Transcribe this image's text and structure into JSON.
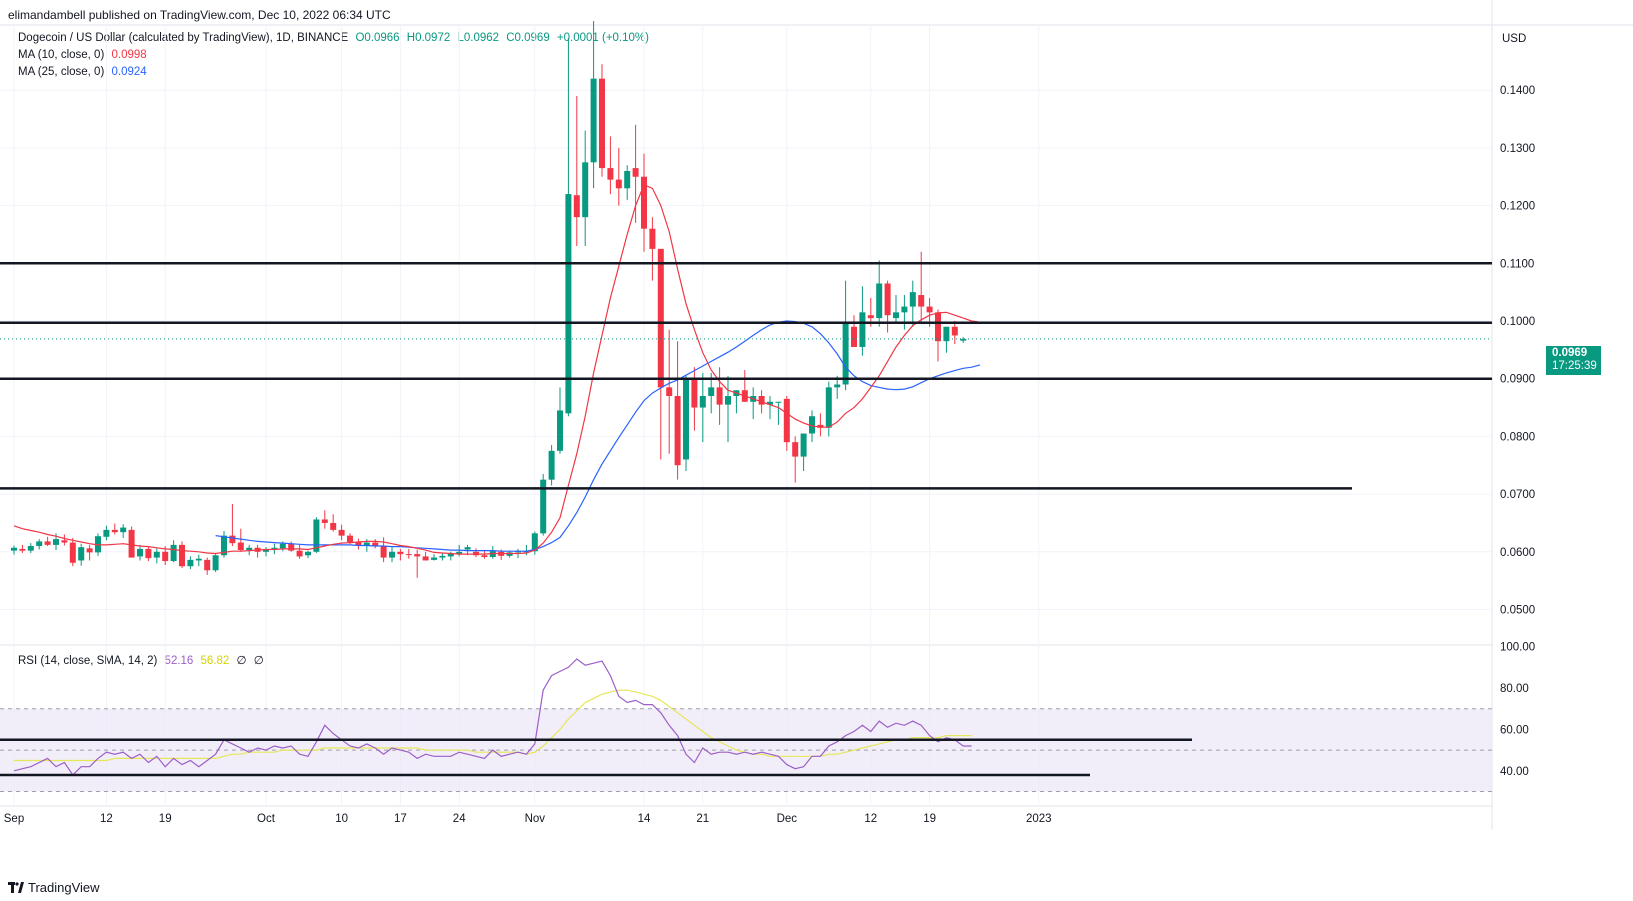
{
  "header": {
    "published": "elimandambell published on TradingView.com, Dec 10, 2022 06:34 UTC"
  },
  "legend": {
    "symbol": "Dogecoin / US Dollar (calculated by TradingView), 1D, BINANCE",
    "o": "O0.0966",
    "h": "H0.0972",
    "l": "L0.0962",
    "c": "C0.0969",
    "change": "+0.0001 (+0.10%)",
    "ma10_label": "MA (10, close, 0)",
    "ma10_value": "0.0998",
    "ma25_label": "MA (25, close, 0)",
    "ma25_value": "0.0924",
    "rsi_label": "RSI (14, close, SMA, 14, 2)",
    "rsi_value": "52.16",
    "rsi_sma_value": "56.82",
    "rsi_extra1": "∅",
    "rsi_extra2": "∅"
  },
  "price_badge": {
    "value": "0.0969",
    "countdown": "17:25:39"
  },
  "currency": "USD",
  "footer": {
    "brand": "TradingView"
  },
  "colors": {
    "up": "#089981",
    "down": "#f23645",
    "ma10": "#f23645",
    "ma25": "#2962ff",
    "rsi": "#9c5fc7",
    "rsi_sma": "#e6e65a",
    "band": "#ede7f6"
  },
  "chart_data": {
    "type": "candlestick",
    "price_ticks": [
      "0.1400",
      "0.1300",
      "0.1200",
      "0.1100",
      "0.1000",
      "0.0900",
      "0.0800",
      "0.0700",
      "0.0600",
      "0.0500"
    ],
    "rsi_ticks": [
      "100.00",
      "80.00",
      "60.00",
      "40.00"
    ],
    "x_ticks": [
      "Sep",
      "12",
      "19",
      "Oct",
      "10",
      "17",
      "24",
      "Nov",
      "14",
      "21",
      "Dec",
      "12",
      "19",
      "2023"
    ],
    "x_tick_day_index": [
      0,
      11,
      18,
      30,
      39,
      46,
      53,
      62,
      75,
      82,
      92,
      102,
      109,
      122
    ],
    "ohlc": [
      [
        0.0602,
        0.0611,
        0.0595,
        0.0607
      ],
      [
        0.0605,
        0.0612,
        0.0598,
        0.0602
      ],
      [
        0.0602,
        0.0615,
        0.0598,
        0.061
      ],
      [
        0.061,
        0.0622,
        0.0604,
        0.0618
      ],
      [
        0.0618,
        0.0626,
        0.061,
        0.0612
      ],
      [
        0.0612,
        0.0632,
        0.0603,
        0.0622
      ],
      [
        0.062,
        0.063,
        0.0611,
        0.0616
      ],
      [
        0.0616,
        0.0624,
        0.0575,
        0.0581
      ],
      [
        0.0585,
        0.0614,
        0.0576,
        0.0608
      ],
      [
        0.0606,
        0.0612,
        0.0585,
        0.0599
      ],
      [
        0.0599,
        0.0632,
        0.0593,
        0.0627
      ],
      [
        0.0626,
        0.0645,
        0.062,
        0.0638
      ],
      [
        0.0638,
        0.0649,
        0.063,
        0.0634
      ],
      [
        0.0634,
        0.0648,
        0.0624,
        0.0642
      ],
      [
        0.0638,
        0.0644,
        0.059,
        0.059
      ],
      [
        0.0592,
        0.0612,
        0.0585,
        0.0605
      ],
      [
        0.0605,
        0.061,
        0.0584,
        0.0589
      ],
      [
        0.059,
        0.0606,
        0.058,
        0.06
      ],
      [
        0.06,
        0.061,
        0.0577,
        0.0584
      ],
      [
        0.0584,
        0.062,
        0.0582,
        0.0612
      ],
      [
        0.0612,
        0.0618,
        0.0572,
        0.0575
      ],
      [
        0.0575,
        0.0592,
        0.057,
        0.0586
      ],
      [
        0.0585,
        0.0595,
        0.0575,
        0.0588
      ],
      [
        0.0586,
        0.059,
        0.056,
        0.0568
      ],
      [
        0.0568,
        0.0596,
        0.0565,
        0.0594
      ],
      [
        0.0594,
        0.0636,
        0.059,
        0.0628
      ],
      [
        0.0628,
        0.0683,
        0.061,
        0.0615
      ],
      [
        0.0616,
        0.064,
        0.06,
        0.0603
      ],
      [
        0.0603,
        0.0612,
        0.0594,
        0.0607
      ],
      [
        0.0607,
        0.0612,
        0.059,
        0.06
      ],
      [
        0.06,
        0.0608,
        0.0592,
        0.0605
      ],
      [
        0.0605,
        0.0614,
        0.0596,
        0.0607
      ],
      [
        0.0606,
        0.0618,
        0.0601,
        0.0614
      ],
      [
        0.0614,
        0.0618,
        0.06,
        0.0602
      ],
      [
        0.0602,
        0.0612,
        0.0588,
        0.0592
      ],
      [
        0.0594,
        0.0602,
        0.0589,
        0.06
      ],
      [
        0.06,
        0.066,
        0.0598,
        0.0656
      ],
      [
        0.0656,
        0.0672,
        0.064,
        0.065
      ],
      [
        0.065,
        0.0665,
        0.0635,
        0.0638
      ],
      [
        0.0638,
        0.0647,
        0.062,
        0.0628
      ],
      [
        0.0628,
        0.0632,
        0.0613,
        0.0617
      ],
      [
        0.0617,
        0.0623,
        0.0604,
        0.0611
      ],
      [
        0.0611,
        0.0622,
        0.06,
        0.0616
      ],
      [
        0.0616,
        0.0622,
        0.0606,
        0.061
      ],
      [
        0.061,
        0.0625,
        0.0582,
        0.059
      ],
      [
        0.059,
        0.061,
        0.0582,
        0.06
      ],
      [
        0.06,
        0.0605,
        0.0585,
        0.0596
      ],
      [
        0.0596,
        0.0605,
        0.0588,
        0.0595
      ],
      [
        0.0596,
        0.0604,
        0.0555,
        0.0592
      ],
      [
        0.0592,
        0.06,
        0.0585,
        0.0585
      ],
      [
        0.0586,
        0.0596,
        0.0585,
        0.059
      ],
      [
        0.059,
        0.0598,
        0.0585,
        0.0593
      ],
      [
        0.0592,
        0.06,
        0.0585,
        0.0597
      ],
      [
        0.0597,
        0.0612,
        0.0592,
        0.06
      ],
      [
        0.0604,
        0.0612,
        0.0594,
        0.0608
      ],
      [
        0.06,
        0.0606,
        0.0591,
        0.0594
      ],
      [
        0.0594,
        0.0602,
        0.0588,
        0.0591
      ],
      [
        0.0591,
        0.061,
        0.0588,
        0.0601
      ],
      [
        0.06,
        0.0604,
        0.0586,
        0.0593
      ],
      [
        0.0593,
        0.0602,
        0.059,
        0.0599
      ],
      [
        0.0599,
        0.0605,
        0.0589,
        0.0601
      ],
      [
        0.06,
        0.0612,
        0.0594,
        0.0601
      ],
      [
        0.0601,
        0.0635,
        0.0595,
        0.0632
      ],
      [
        0.0632,
        0.0735,
        0.0628,
        0.0725
      ],
      [
        0.0725,
        0.0785,
        0.0715,
        0.0775
      ],
      [
        0.0775,
        0.0885,
        0.077,
        0.0845
      ],
      [
        0.084,
        0.149,
        0.0835,
        0.122
      ],
      [
        0.1218,
        0.139,
        0.113,
        0.118
      ],
      [
        0.118,
        0.133,
        0.113,
        0.1275
      ],
      [
        0.1275,
        0.152,
        0.123,
        0.142
      ],
      [
        0.142,
        0.1445,
        0.125,
        0.1265
      ],
      [
        0.1265,
        0.132,
        0.122,
        0.1245
      ],
      [
        0.1245,
        0.13,
        0.12,
        0.123
      ],
      [
        0.123,
        0.127,
        0.121,
        0.126
      ],
      [
        0.1265,
        0.134,
        0.117,
        0.125
      ],
      [
        0.125,
        0.129,
        0.112,
        0.116
      ],
      [
        0.116,
        0.118,
        0.107,
        0.1125
      ],
      [
        0.1125,
        0.1125,
        0.076,
        0.0885
      ],
      [
        0.0885,
        0.0985,
        0.077,
        0.087
      ],
      [
        0.087,
        0.0965,
        0.0725,
        0.075
      ],
      [
        0.076,
        0.0905,
        0.074,
        0.09
      ],
      [
        0.09,
        0.092,
        0.081,
        0.085
      ],
      [
        0.085,
        0.091,
        0.079,
        0.087
      ],
      [
        0.087,
        0.091,
        0.084,
        0.0885
      ],
      [
        0.0885,
        0.092,
        0.082,
        0.0855
      ],
      [
        0.0855,
        0.0905,
        0.079,
        0.087
      ],
      [
        0.087,
        0.088,
        0.084,
        0.088
      ],
      [
        0.088,
        0.0915,
        0.086,
        0.086
      ],
      [
        0.086,
        0.0885,
        0.083,
        0.087
      ],
      [
        0.087,
        0.088,
        0.084,
        0.0855
      ],
      [
        0.0855,
        0.087,
        0.083,
        0.086
      ],
      [
        0.086,
        0.086,
        0.082,
        0.086
      ],
      [
        0.0865,
        0.087,
        0.0775,
        0.079
      ],
      [
        0.079,
        0.08,
        0.072,
        0.0765
      ],
      [
        0.0765,
        0.08,
        0.074,
        0.0805
      ],
      [
        0.0805,
        0.0845,
        0.079,
        0.0835
      ],
      [
        0.082,
        0.084,
        0.08,
        0.0815
      ],
      [
        0.0815,
        0.0895,
        0.08,
        0.0885
      ],
      [
        0.0885,
        0.0905,
        0.0865,
        0.089
      ],
      [
        0.089,
        0.107,
        0.088,
        0.0995
      ],
      [
        0.099,
        0.101,
        0.096,
        0.0955
      ],
      [
        0.0955,
        0.106,
        0.094,
        0.1015
      ],
      [
        0.101,
        0.104,
        0.099,
        0.1005
      ],
      [
        0.1005,
        0.1105,
        0.099,
        0.1065
      ],
      [
        0.1065,
        0.107,
        0.098,
        0.101
      ],
      [
        0.1005,
        0.1045,
        0.0995,
        0.1015
      ],
      [
        0.1015,
        0.1045,
        0.0985,
        0.1025
      ],
      [
        0.1025,
        0.107,
        0.099,
        0.105
      ],
      [
        0.1045,
        0.112,
        0.0995,
        0.1025
      ],
      [
        0.1025,
        0.104,
        0.099,
        0.1015
      ],
      [
        0.1015,
        0.102,
        0.093,
        0.0965
      ],
      [
        0.0965,
        0.099,
        0.0945,
        0.099
      ],
      [
        0.099,
        0.1,
        0.096,
        0.0975
      ],
      [
        0.0966,
        0.0972,
        0.0962,
        0.0969
      ]
    ],
    "ma10": [
      0.0645,
      0.064,
      0.0637,
      0.0634,
      0.063,
      0.0627,
      0.0623,
      0.062,
      0.0617,
      0.0614,
      0.0612,
      0.0612,
      0.0613,
      0.0614,
      0.0612,
      0.061,
      0.0609,
      0.0607,
      0.0605,
      0.0604,
      0.0602,
      0.0601,
      0.06,
      0.0598,
      0.0597,
      0.0599,
      0.0601,
      0.0601,
      0.0602,
      0.0603,
      0.0604,
      0.0604,
      0.0605,
      0.0605,
      0.0605,
      0.0604,
      0.0607,
      0.061,
      0.0613,
      0.0615,
      0.0616,
      0.0617,
      0.0618,
      0.0618,
      0.0617,
      0.0614,
      0.0611,
      0.0609,
      0.0606,
      0.0603,
      0.0599,
      0.0598,
      0.0597,
      0.0596,
      0.0596,
      0.0596,
      0.0596,
      0.0597,
      0.0597,
      0.0597,
      0.0597,
      0.0598,
      0.0603,
      0.0615,
      0.0634,
      0.0659,
      0.0715,
      0.077,
      0.0835,
      0.091,
      0.0975,
      0.104,
      0.1095,
      0.115,
      0.12,
      0.1236,
      0.123,
      0.12,
      0.1155,
      0.109,
      0.103,
      0.0985,
      0.0945,
      0.0915,
      0.0895,
      0.088,
      0.0875,
      0.087,
      0.0865,
      0.086,
      0.0855,
      0.085,
      0.084,
      0.083,
      0.0823,
      0.0818,
      0.0816,
      0.0816,
      0.0825,
      0.084,
      0.085,
      0.0865,
      0.0885,
      0.0905,
      0.093,
      0.0955,
      0.0975,
      0.0992,
      0.1002,
      0.101,
      0.1014,
      0.1015,
      0.101,
      0.1005,
      0.1,
      0.0998
    ],
    "ma25": [
      null,
      null,
      null,
      null,
      null,
      null,
      null,
      null,
      null,
      null,
      null,
      null,
      null,
      null,
      null,
      null,
      null,
      null,
      null,
      null,
      null,
      null,
      null,
      null,
      0.0628,
      0.0626,
      0.0624,
      0.0622,
      0.062,
      0.0618,
      0.0617,
      0.0616,
      0.0615,
      0.0614,
      0.0613,
      0.0612,
      0.0612,
      0.0612,
      0.0612,
      0.0612,
      0.0612,
      0.0611,
      0.0611,
      0.061,
      0.061,
      0.0609,
      0.0609,
      0.0608,
      0.0607,
      0.0606,
      0.0605,
      0.0604,
      0.0603,
      0.0603,
      0.0602,
      0.0602,
      0.0602,
      0.0602,
      0.0601,
      0.0601,
      0.0601,
      0.0601,
      0.0604,
      0.0609,
      0.0616,
      0.0625,
      0.0645,
      0.0668,
      0.0695,
      0.0725,
      0.0752,
      0.0775,
      0.0798,
      0.082,
      0.0842,
      0.0862,
      0.0875,
      0.0884,
      0.0892,
      0.0898,
      0.0906,
      0.0914,
      0.0922,
      0.093,
      0.0938,
      0.0946,
      0.0955,
      0.0965,
      0.0975,
      0.0985,
      0.0993,
      0.0998,
      0.1,
      0.0999,
      0.0996,
      0.099,
      0.0978,
      0.0962,
      0.0943,
      0.092,
      0.0905,
      0.0895,
      0.0888,
      0.0885,
      0.0882,
      0.0881,
      0.0882,
      0.0886,
      0.0893,
      0.09,
      0.0905,
      0.091,
      0.0914,
      0.0918,
      0.092,
      0.0924
    ],
    "rsi": [
      40,
      41,
      42,
      44,
      46,
      42,
      44,
      38,
      42,
      42,
      46,
      49,
      48,
      49,
      46,
      48,
      44,
      47,
      42,
      46,
      43,
      45,
      42,
      45,
      48,
      55,
      53,
      51,
      49,
      51,
      50,
      52,
      51,
      52,
      48,
      47,
      54,
      62,
      58,
      55,
      52,
      51,
      53,
      51,
      48,
      51,
      50,
      49,
      46,
      48,
      47,
      47,
      47,
      49,
      48,
      47,
      46,
      50,
      47,
      48,
      49,
      48,
      53,
      79,
      86,
      88,
      90,
      94,
      91,
      92,
      93,
      86,
      76,
      73,
      74,
      72,
      72,
      68,
      62,
      57,
      48,
      44,
      51,
      48,
      49,
      49,
      48,
      49,
      48,
      49,
      48,
      47,
      43,
      41,
      42,
      47,
      47,
      52,
      54,
      57,
      59,
      62,
      59,
      64,
      61,
      63,
      62,
      64,
      62,
      57,
      54,
      56,
      55,
      52,
      52
    ],
    "rsi_sma": [
      45,
      45,
      45,
      45,
      45,
      45,
      45,
      45,
      45,
      45,
      45,
      45,
      46,
      46,
      46,
      46,
      46,
      46,
      46,
      46,
      46,
      46,
      46,
      46,
      46,
      47,
      48,
      48,
      49,
      49,
      49,
      49,
      50,
      50,
      50,
      50,
      50,
      51,
      51,
      51,
      51,
      51,
      51,
      51,
      51,
      51,
      51,
      51,
      51,
      50,
      50,
      50,
      50,
      50,
      50,
      49,
      49,
      49,
      49,
      49,
      49,
      48,
      49,
      52,
      56,
      60,
      65,
      69,
      73,
      75,
      77,
      78,
      79,
      79,
      78,
      77,
      76,
      74,
      71,
      68,
      65,
      62,
      59,
      56,
      54,
      52,
      50,
      49,
      48,
      48,
      47,
      47,
      47,
      47,
      47,
      47,
      47,
      48,
      48,
      49,
      50,
      51,
      52,
      53,
      54,
      55,
      55,
      56,
      56,
      56,
      56,
      57,
      57,
      57,
      57
    ],
    "levels": [
      0.11,
      0.0997,
      0.09,
      0.071
    ],
    "rsi_levels": [
      55,
      38
    ]
  }
}
